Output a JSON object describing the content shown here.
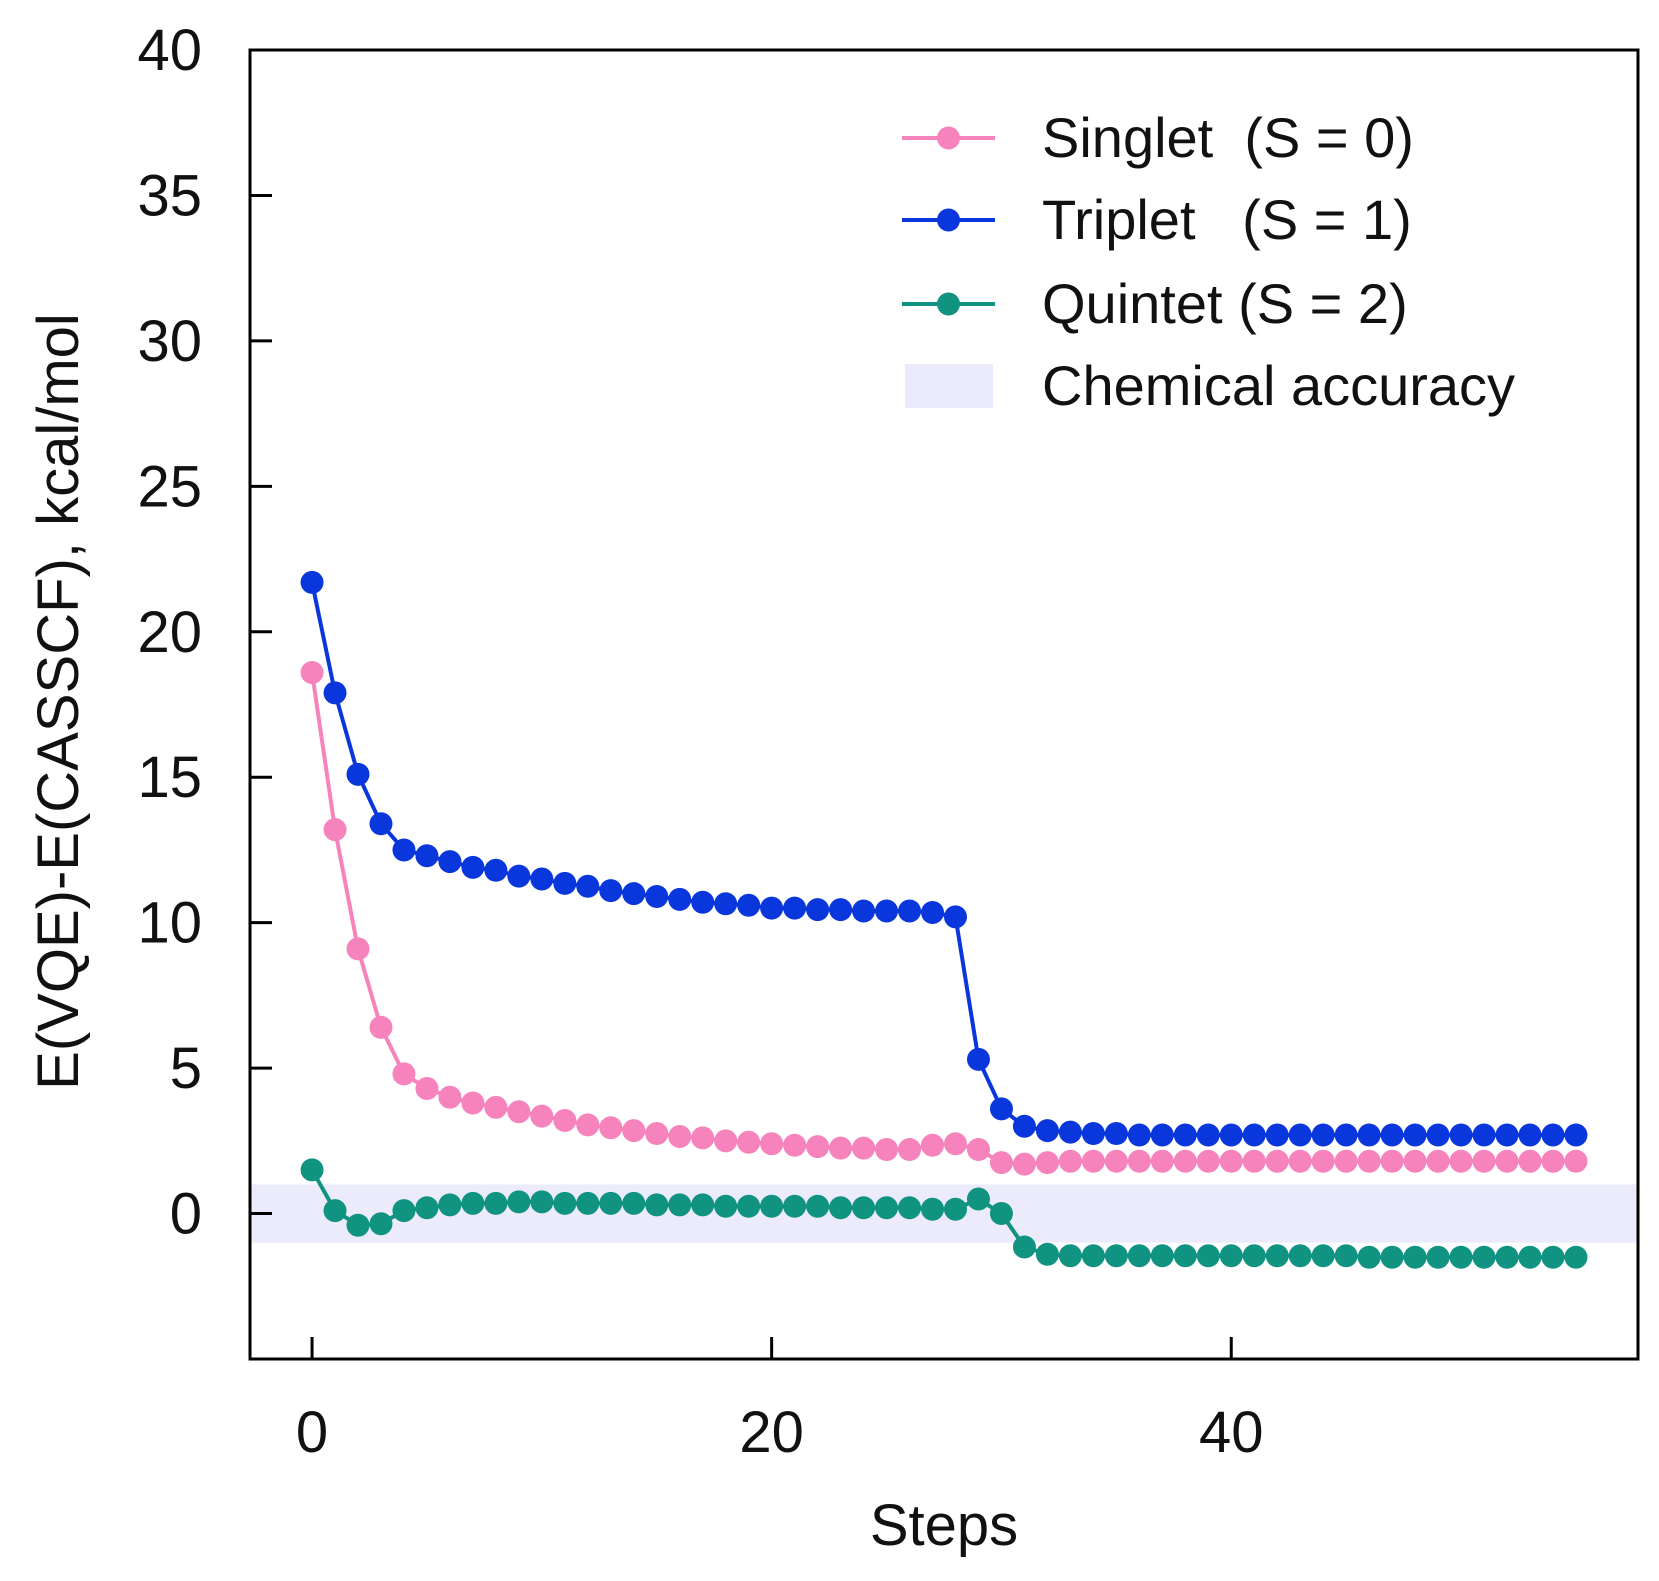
{
  "chart_data": {
    "type": "line",
    "title": "",
    "xlabel": "Steps",
    "ylabel": "E(VQE)-E(CASSCF), kcal/mol",
    "xlim": [
      -2.7,
      57.7
    ],
    "ylim": [
      -5,
      40
    ],
    "xticks": [
      0,
      20,
      40
    ],
    "yticks": [
      0,
      5,
      10,
      15,
      20,
      25,
      30,
      35,
      40
    ],
    "grid": false,
    "legend_position": "top-right",
    "band": {
      "name": "Chemical accuracy",
      "y0": -1,
      "y1": 1,
      "color": "#ebebfb"
    },
    "series": [
      {
        "name": "Singlet  (S = 0)",
        "color": "#f783bd",
        "x": [
          0,
          1,
          2,
          3,
          4,
          5,
          6,
          7,
          8,
          9,
          10,
          11,
          12,
          13,
          14,
          15,
          16,
          17,
          18,
          19,
          20,
          21,
          22,
          23,
          24,
          25,
          26,
          27,
          28,
          29,
          30,
          31,
          32,
          33,
          34,
          35,
          36,
          37,
          38,
          39,
          40,
          41,
          42,
          43,
          44,
          45,
          46,
          47,
          48,
          49,
          50,
          51,
          52,
          53,
          54,
          55
        ],
        "values": [
          18.6,
          13.2,
          9.1,
          6.4,
          4.8,
          4.3,
          4.0,
          3.8,
          3.65,
          3.5,
          3.35,
          3.2,
          3.05,
          2.95,
          2.85,
          2.75,
          2.65,
          2.6,
          2.5,
          2.45,
          2.4,
          2.35,
          2.3,
          2.25,
          2.25,
          2.2,
          2.2,
          2.35,
          2.4,
          2.2,
          1.75,
          1.7,
          1.75,
          1.8,
          1.8,
          1.8,
          1.8,
          1.8,
          1.8,
          1.8,
          1.8,
          1.8,
          1.8,
          1.8,
          1.8,
          1.8,
          1.8,
          1.8,
          1.8,
          1.8,
          1.8,
          1.8,
          1.8,
          1.8,
          1.8,
          1.8
        ]
      },
      {
        "name": "Triplet   (S = 1)",
        "color": "#0a37dc",
        "x": [
          0,
          1,
          2,
          3,
          4,
          5,
          6,
          7,
          8,
          9,
          10,
          11,
          12,
          13,
          14,
          15,
          16,
          17,
          18,
          19,
          20,
          21,
          22,
          23,
          24,
          25,
          26,
          27,
          28,
          29,
          30,
          31,
          32,
          33,
          34,
          35,
          36,
          37,
          38,
          39,
          40,
          41,
          42,
          43,
          44,
          45,
          46,
          47,
          48,
          49,
          50,
          51,
          52,
          53,
          54,
          55
        ],
        "values": [
          21.7,
          17.9,
          15.1,
          13.4,
          12.5,
          12.3,
          12.1,
          11.9,
          11.8,
          11.6,
          11.5,
          11.35,
          11.25,
          11.1,
          11.0,
          10.9,
          10.8,
          10.7,
          10.65,
          10.6,
          10.5,
          10.5,
          10.45,
          10.45,
          10.4,
          10.4,
          10.4,
          10.35,
          10.2,
          5.3,
          3.6,
          3.0,
          2.85,
          2.8,
          2.75,
          2.75,
          2.7,
          2.7,
          2.7,
          2.7,
          2.7,
          2.7,
          2.7,
          2.7,
          2.7,
          2.7,
          2.7,
          2.7,
          2.7,
          2.7,
          2.7,
          2.7,
          2.7,
          2.7,
          2.7,
          2.7
        ]
      },
      {
        "name": "Quintet (S = 2)",
        "color": "#119381",
        "x": [
          0,
          1,
          2,
          3,
          4,
          5,
          6,
          7,
          8,
          9,
          10,
          11,
          12,
          13,
          14,
          15,
          16,
          17,
          18,
          19,
          20,
          21,
          22,
          23,
          24,
          25,
          26,
          27,
          28,
          29,
          30,
          31,
          32,
          33,
          34,
          35,
          36,
          37,
          38,
          39,
          40,
          41,
          42,
          43,
          44,
          45,
          46,
          47,
          48,
          49,
          50,
          51,
          52,
          53,
          54,
          55
        ],
        "values": [
          1.5,
          0.1,
          -0.4,
          -0.35,
          0.1,
          0.2,
          0.3,
          0.35,
          0.35,
          0.4,
          0.4,
          0.35,
          0.35,
          0.35,
          0.35,
          0.3,
          0.3,
          0.3,
          0.25,
          0.25,
          0.25,
          0.25,
          0.25,
          0.2,
          0.2,
          0.2,
          0.2,
          0.15,
          0.15,
          0.5,
          0.0,
          -1.15,
          -1.4,
          -1.45,
          -1.45,
          -1.45,
          -1.45,
          -1.45,
          -1.45,
          -1.45,
          -1.45,
          -1.45,
          -1.45,
          -1.45,
          -1.45,
          -1.45,
          -1.5,
          -1.5,
          -1.5,
          -1.5,
          -1.5,
          -1.5,
          -1.5,
          -1.5,
          -1.5,
          -1.5
        ]
      }
    ]
  }
}
